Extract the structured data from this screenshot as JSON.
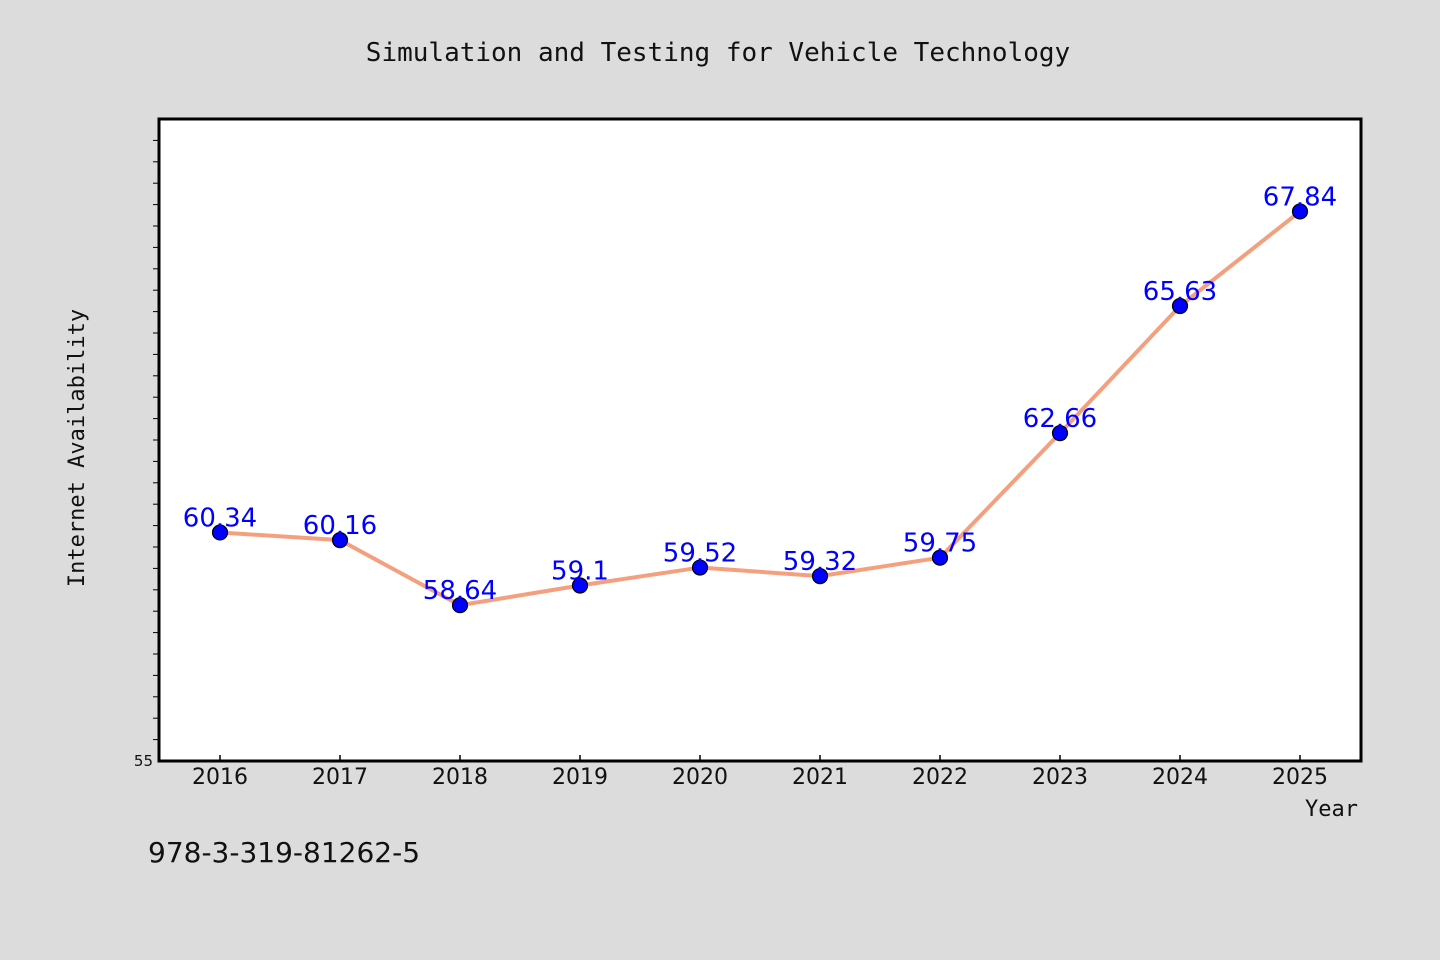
{
  "chart_data": {
    "type": "line",
    "title": "Simulation and Testing for Vehicle Technology",
    "xlabel": "Year",
    "ylabel": "Internet Availability",
    "categories": [
      "2016",
      "2017",
      "2018",
      "2019",
      "2020",
      "2021",
      "2022",
      "2023",
      "2024",
      "2025"
    ],
    "series": [
      {
        "values": [
          60.34,
          60.16,
          58.64,
          59.1,
          59.52,
          59.32,
          59.75,
          62.66,
          65.63,
          67.84
        ],
        "data_labels": [
          "60.34",
          "60.16",
          "58.64",
          "59.1",
          "59.52",
          "59.32",
          "59.75",
          "62.66",
          "65.63",
          "67.84"
        ]
      }
    ],
    "ylim": [
      55,
      70
    ],
    "y_tick_label": "55",
    "grid": false,
    "legend": "none",
    "colors": {
      "line": "#f4a07e",
      "marker": "#0000ff",
      "label": "#0000ff",
      "background": "#dcdcdc",
      "plot_background": "#ffffff"
    }
  },
  "footer": {
    "isbn": "978-3-319-81262-5"
  }
}
